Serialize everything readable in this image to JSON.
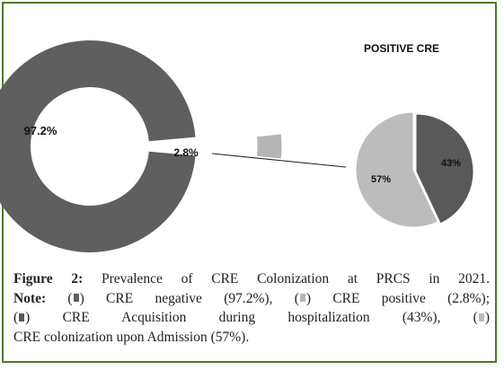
{
  "chart_data": [
    {
      "type": "pie",
      "variant": "donut",
      "slices": [
        {
          "label": "97.2%",
          "value": 97.2,
          "color": "#5f5f5f"
        },
        {
          "label": "2.8%",
          "value": 2.8,
          "color": "#b5b5b5"
        }
      ]
    },
    {
      "type": "pie",
      "title": "POSITIVE  CRE",
      "slices": [
        {
          "label": "43%",
          "value": 43,
          "color": "#595959"
        },
        {
          "label": "57%",
          "value": 57,
          "color": "#bcbcbc"
        }
      ]
    }
  ],
  "caption": {
    "fig_label": "Figure 2:",
    "fig_text": " Prevalence of CRE Colonization at PRCS in 2021.",
    "note_label": "Note:",
    "neg_text": "CRE negative (97.2%),",
    "pos_text": "CRE positive (2.8%);",
    "acq_text": "CRE Acquisition during hospitalization (43%),",
    "adm_text": "CRE colonization upon Admission (57%).",
    "open_paren": "(",
    "close_paren": ")"
  },
  "colors": {
    "frame": "#4a7a2c",
    "neg": "#5f5f5f",
    "pos": "#b5b5b5",
    "acq": "#595959",
    "adm": "#bcbcbc"
  }
}
